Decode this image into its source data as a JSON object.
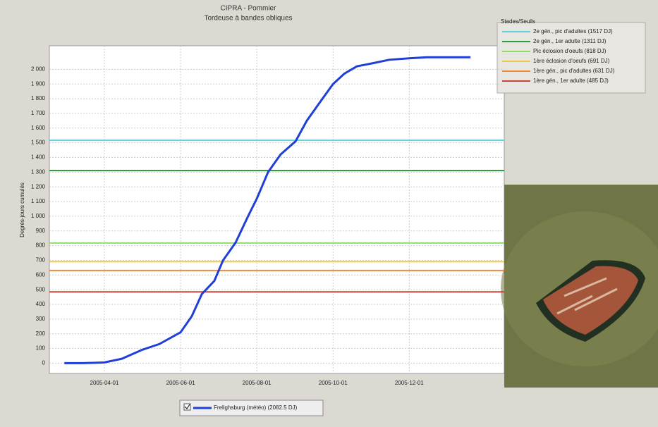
{
  "chart_data": {
    "type": "line",
    "title": "CIPRA - Pommier",
    "subtitle": "Tordeuse à bandes obliques",
    "y_label": "Degrés-jours cumulés",
    "x": [
      "2005-02-28",
      "2005-03-15",
      "2005-04-01",
      "2005-04-15",
      "2005-05-01",
      "2005-05-15",
      "2005-06-01",
      "2005-06-10",
      "2005-06-18",
      "2005-06-28",
      "2005-07-05",
      "2005-07-15",
      "2005-07-25",
      "2005-08-01",
      "2005-08-10",
      "2005-08-20",
      "2005-09-01",
      "2005-09-10",
      "2005-09-20",
      "2005-10-01",
      "2005-10-10",
      "2005-10-20",
      "2005-11-01",
      "2005-11-15",
      "2005-12-01",
      "2005-12-15",
      "2006-01-19"
    ],
    "series": [
      {
        "name": "Frelighsburg (météo) (2082.5 DJ)",
        "color": "#1f3fd8",
        "values": [
          0,
          0,
          5,
          30,
          90,
          130,
          210,
          320,
          470,
          560,
          700,
          820,
          1000,
          1120,
          1300,
          1420,
          1510,
          1650,
          1770,
          1900,
          1970,
          2020,
          2040,
          2065,
          2075,
          2082,
          2082
        ]
      }
    ],
    "legend_title": "Stades/Seuils",
    "thresholds": [
      {
        "name": "2e gén., pic d'adultes (1517 DJ)",
        "value": 1517,
        "color": "#5fd3e6"
      },
      {
        "name": "2e gén., 1er adulte (1311 DJ)",
        "value": 1311,
        "color": "#2e9e3e"
      },
      {
        "name": "Pic éclosion d'oeufs (818 DJ)",
        "value": 818,
        "color": "#8fdc6a"
      },
      {
        "name": "1ère éclosion d'oeufs (691 DJ)",
        "value": 691,
        "color": "#f0c850"
      },
      {
        "name": "1ère gén., pic d'adultes (631 DJ)",
        "value": 631,
        "color": "#f08a3c"
      },
      {
        "name": "1ère gén., 1er adulte (485 DJ)",
        "value": 485,
        "color": "#c8473a"
      }
    ],
    "xlim": [
      "2005-02-16",
      "2006-02-15"
    ],
    "xticks": [
      "2005-04-01",
      "2005-06-01",
      "2005-08-01",
      "2005-10-01",
      "2005-12-01"
    ],
    "ylim": [
      -70,
      2160
    ],
    "yticks": [
      0,
      100,
      200,
      300,
      400,
      500,
      600,
      700,
      800,
      900,
      {
        "value": 1000,
        "label": "1 000"
      },
      {
        "value": 1100,
        "label": "1 100"
      },
      {
        "value": 1200,
        "label": "1 200"
      },
      {
        "value": 1300,
        "label": "1 300"
      },
      {
        "value": 1400,
        "label": "1 400"
      },
      {
        "value": 1500,
        "label": "1 500"
      },
      {
        "value": 1600,
        "label": "1 600"
      },
      {
        "value": 1700,
        "label": "1 700"
      },
      {
        "value": 1800,
        "label": "1 800"
      },
      {
        "value": 1900,
        "label": "1 900"
      },
      {
        "value": 2000,
        "label": "2 000"
      }
    ],
    "grid": true
  }
}
